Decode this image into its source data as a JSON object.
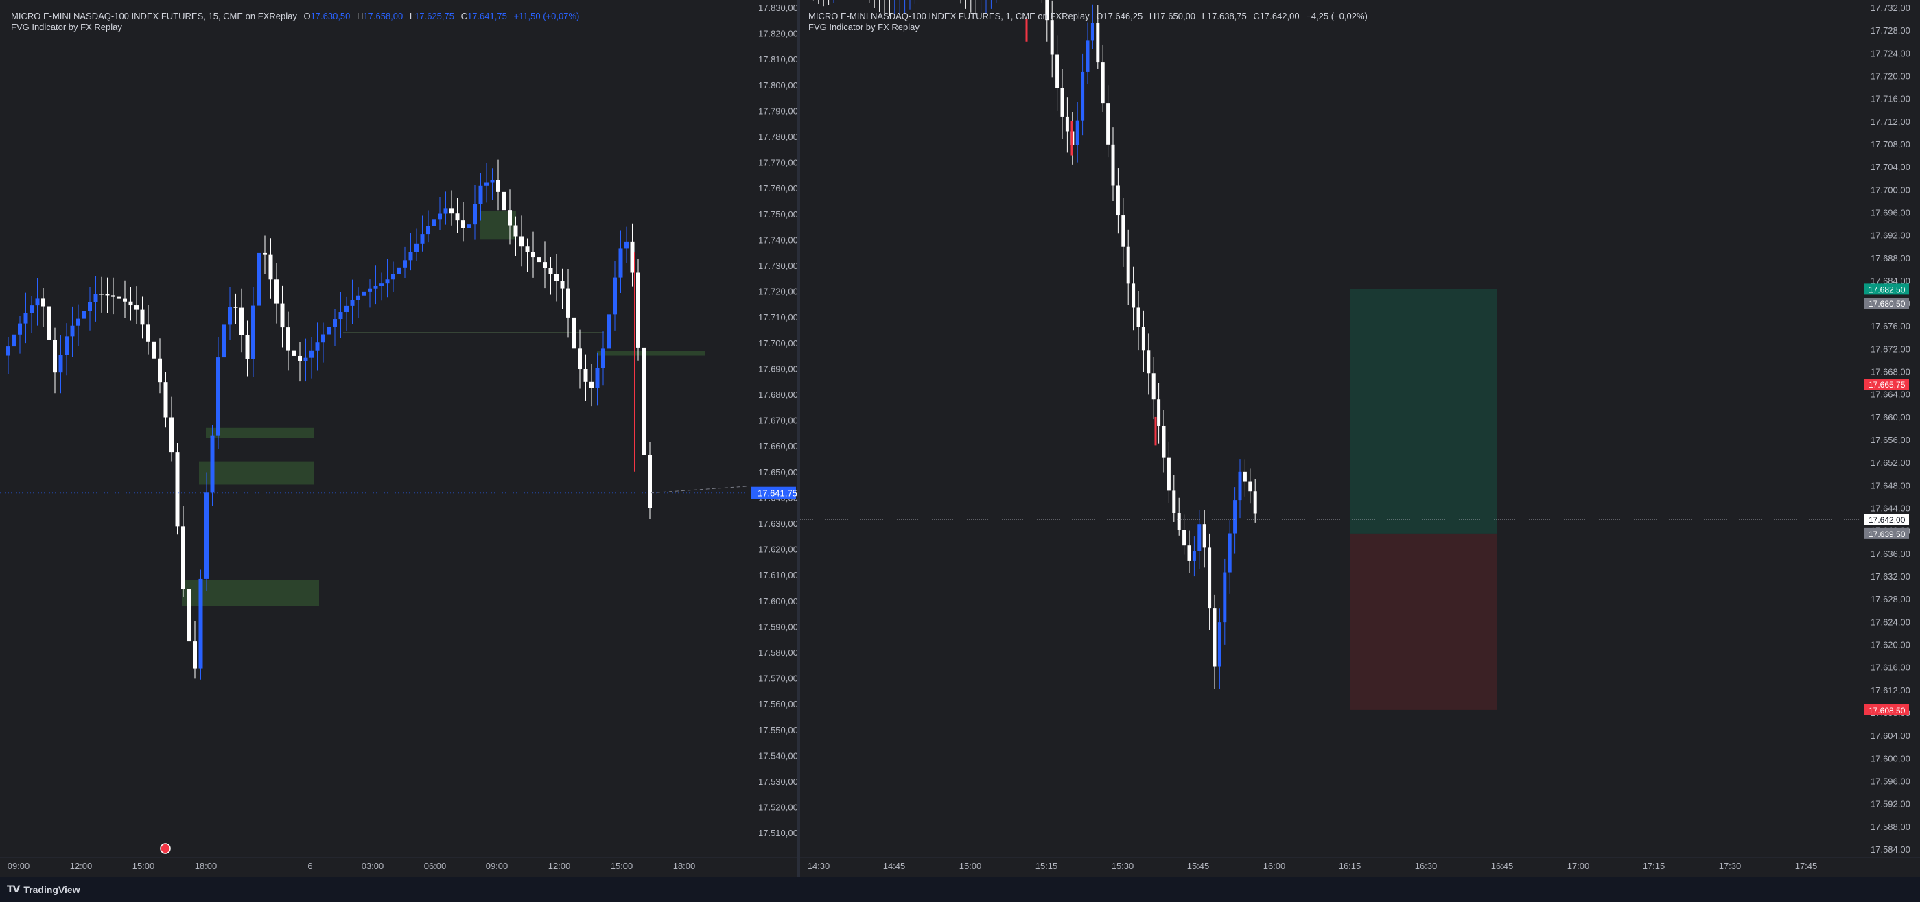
{
  "left_chart": {
    "legend_symbol": "MICRO E-MINI NASDAQ-100 INDEX FUTURES, 15, CME on FXReplay",
    "legend_o_label": "O",
    "legend_o": "17.630,50",
    "legend_h_label": "H",
    "legend_h": "17.658,00",
    "legend_l_label": "L",
    "legend_l": "17.625,75",
    "legend_c_label": "C",
    "legend_c": "17.641,75",
    "legend_change": "+11,50 (+0,07%)",
    "indicator": "FVG Indicator by FX Replay",
    "price_labels": [
      "17.830,00",
      "17.820,00",
      "17.810,00",
      "17.800,00",
      "17.790,00",
      "17.780,00",
      "17.770,00",
      "17.760,00",
      "17.750,00",
      "17.740,00",
      "17.730,00",
      "17.720,00",
      "17.710,00",
      "17.700,00",
      "17.690,00",
      "17.680,00",
      "17.670,00",
      "17.660,00",
      "17.650,00",
      "17.640,00",
      "17.630,00",
      "17.620,00",
      "17.610,00",
      "17.600,00",
      "17.590,00",
      "17.580,00",
      "17.570,00",
      "17.560,00",
      "17.550,00",
      "17.540,00",
      "17.530,00",
      "17.520,00",
      "17.510,00"
    ],
    "time_labels": [
      "09:00",
      "12:00",
      "15:00",
      "18:00",
      "6",
      "03:00",
      "06:00",
      "09:00",
      "12:00",
      "15:00",
      "18:00"
    ],
    "current_price": "17.641,75",
    "colors": {
      "up": "#2962ff",
      "down": "#ffffff",
      "fvg": "#2f4a2e",
      "current": "#2962ff"
    },
    "event_icon": "earnings-flag-icon"
  },
  "right_chart": {
    "legend_symbol": "MICRO E-MINI NASDAQ-100 INDEX FUTURES, 1, CME on FXReplay",
    "legend_o_label": "O",
    "legend_o": "17.646,25",
    "legend_h_label": "H",
    "legend_h": "17.650,00",
    "legend_l_label": "L",
    "legend_l": "17.638,75",
    "legend_c_label": "C",
    "legend_c": "17.642,00",
    "legend_change": "−4,25 (−0,02%)",
    "indicator": "FVG Indicator by FX Replay",
    "price_labels": [
      "17.732,00",
      "17.728,00",
      "17.724,00",
      "17.720,00",
      "17.716,00",
      "17.712,00",
      "17.708,00",
      "17.704,00",
      "17.700,00",
      "17.696,00",
      "17.692,00",
      "17.688,00",
      "17.684,00",
      "17.680,00",
      "17.676,00",
      "17.672,00",
      "17.668,00",
      "17.664,00",
      "17.660,00",
      "17.656,00",
      "17.652,00",
      "17.648,00",
      "17.644,00",
      "17.640,00",
      "17.636,00",
      "17.632,00",
      "17.628,00",
      "17.624,00",
      "17.620,00",
      "17.616,00",
      "17.612,00",
      "17.608,00",
      "17.604,00",
      "17.600,00",
      "17.596,00",
      "17.592,00",
      "17.588,00",
      "17.584,00"
    ],
    "time_labels": [
      "14:30",
      "14:45",
      "15:00",
      "15:15",
      "15:30",
      "15:45",
      "16:00",
      "16:15",
      "16:30",
      "16:45",
      "17:00",
      "17:15",
      "17:30",
      "17:45"
    ],
    "current_price": "17.642,00",
    "target_price": "17.682,50",
    "target2_price": "17.680,50",
    "fvg_price": "17.665,75",
    "entry_price": "17.639,50",
    "stop_price": "17.608,50",
    "colors": {
      "target": "#089981",
      "entry": "#787b86",
      "stop": "#f23645",
      "current": "#ffffff"
    }
  },
  "footer": {
    "brand": "TradingView",
    "logo_icon": "tradingview-logo-icon"
  }
}
